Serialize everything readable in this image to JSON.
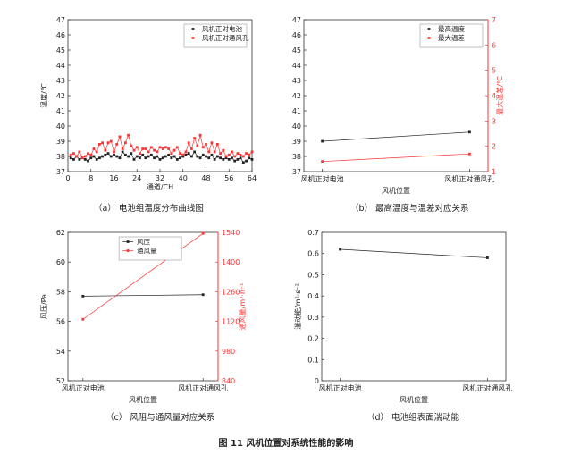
{
  "figure_caption": "图 11 风机位置对系统性能的影响",
  "chart_data": [
    {
      "type": "line",
      "caption": "（a） 电池组温度分布曲线图",
      "xlabel": "通道/CH",
      "ylabel": "温度/℃",
      "xlim": [
        0,
        64
      ],
      "ylim": [
        37,
        47
      ],
      "xticks": [
        0,
        8,
        16,
        24,
        32,
        40,
        48,
        56,
        64
      ],
      "yticks": [
        37,
        38,
        39,
        40,
        41,
        42,
        43,
        44,
        45,
        46,
        47
      ],
      "legend_position": "top-right",
      "series": [
        {
          "name": "风机正对电池",
          "color": "#222222",
          "x": [
            1,
            2,
            3,
            4,
            5,
            6,
            7,
            8,
            9,
            10,
            11,
            12,
            13,
            14,
            15,
            16,
            17,
            18,
            19,
            20,
            21,
            22,
            23,
            24,
            25,
            26,
            27,
            28,
            29,
            30,
            31,
            32,
            33,
            34,
            35,
            36,
            37,
            38,
            39,
            40,
            41,
            42,
            43,
            44,
            45,
            46,
            47,
            48,
            49,
            50,
            51,
            52,
            53,
            54,
            55,
            56,
            57,
            58,
            59,
            60,
            61,
            62,
            63,
            64
          ],
          "y": [
            37.9,
            37.8,
            38.0,
            37.8,
            37.9,
            37.8,
            37.7,
            37.9,
            38.0,
            37.8,
            37.9,
            38.0,
            38.1,
            38.2,
            38.0,
            38.1,
            38.0,
            37.9,
            38.3,
            38.1,
            38.0,
            38.2,
            37.8,
            38.0,
            37.9,
            38.1,
            37.9,
            38.0,
            38.1,
            37.9,
            38.0,
            37.8,
            37.9,
            38.0,
            38.1,
            37.9,
            38.0,
            37.8,
            37.9,
            38.0,
            38.1,
            38.2,
            38.0,
            38.3,
            38.0,
            37.9,
            38.1,
            38.0,
            37.9,
            38.1,
            37.8,
            38.0,
            37.9,
            37.8,
            37.9,
            37.8,
            37.9,
            37.7,
            37.8,
            37.9,
            37.6,
            37.7,
            37.9,
            37.8
          ]
        },
        {
          "name": "风机正对通风孔",
          "color": "#ff3333",
          "x": [
            1,
            2,
            3,
            4,
            5,
            6,
            7,
            8,
            9,
            10,
            11,
            12,
            13,
            14,
            15,
            16,
            17,
            18,
            19,
            20,
            21,
            22,
            23,
            24,
            25,
            26,
            27,
            28,
            29,
            30,
            31,
            32,
            33,
            34,
            35,
            36,
            37,
            38,
            39,
            40,
            41,
            42,
            43,
            44,
            45,
            46,
            47,
            48,
            49,
            50,
            51,
            52,
            53,
            54,
            55,
            56,
            57,
            58,
            59,
            60,
            61,
            62,
            63,
            64
          ],
          "y": [
            38.1,
            38.2,
            38.0,
            38.3,
            37.9,
            38.0,
            38.2,
            38.1,
            38.5,
            38.3,
            38.8,
            38.9,
            38.4,
            38.9,
            39.0,
            38.3,
            38.8,
            39.3,
            38.5,
            38.9,
            39.4,
            38.7,
            38.4,
            38.6,
            38.2,
            38.5,
            38.5,
            38.3,
            38.6,
            38.4,
            38.3,
            38.6,
            38.5,
            38.6,
            38.5,
            38.2,
            38.4,
            38.6,
            38.2,
            38.1,
            38.3,
            38.9,
            38.5,
            39.2,
            38.7,
            39.4,
            38.6,
            38.8,
            38.3,
            38.9,
            38.3,
            38.8,
            38.2,
            38.4,
            38.0,
            38.1,
            38.3,
            38.0,
            38.2,
            38.1,
            38.0,
            38.2,
            38.1,
            38.3
          ]
        }
      ]
    },
    {
      "type": "line",
      "caption": "（b） 最高温度与温差对应关系",
      "categories": [
        "风机正对电池",
        "风机正对通风孔"
      ],
      "xlabel": "风机位置",
      "ylabel": "最高温度/℃",
      "ylabel_right": "最大温差/℃",
      "ylim": [
        37,
        47
      ],
      "ylim_right": [
        1,
        7
      ],
      "yticks": [
        37,
        38,
        39,
        40,
        41,
        42,
        43,
        44,
        45,
        46,
        47
      ],
      "yticks_right": [
        1,
        2,
        3,
        4,
        5,
        6,
        7
      ],
      "legend_position": "top-right",
      "series": [
        {
          "name": "最高温度",
          "axis": "left",
          "color": "#222222",
          "values": [
            39.0,
            39.6
          ]
        },
        {
          "name": "最大温差",
          "axis": "right",
          "color": "#ff3333",
          "values": [
            1.4,
            1.7
          ]
        }
      ]
    },
    {
      "type": "line",
      "caption": "（c） 风阻与通风量对应关系",
      "categories": [
        "风机正对电池",
        "风机正对通风孔"
      ],
      "xlabel": "风机位置",
      "ylabel": "风压/Pa",
      "ylabel_right": "通风量/m³·h⁻¹",
      "ylim": [
        52,
        62
      ],
      "ylim_right": [
        840,
        1540
      ],
      "yticks": [
        52,
        54,
        56,
        58,
        60,
        62
      ],
      "yticks_right": [
        840,
        980,
        1120,
        1260,
        1400,
        1540
      ],
      "legend_position": "top-left",
      "series": [
        {
          "name": "风压",
          "axis": "left",
          "color": "#222222",
          "values": [
            57.7,
            57.8
          ]
        },
        {
          "name": "通风量",
          "axis": "right",
          "color": "#ff3333",
          "values": [
            1130,
            1535
          ]
        }
      ]
    },
    {
      "type": "line",
      "caption": "（d） 电池组表面湍动能",
      "categories": [
        "风机正对电池",
        "风机正对通风孔"
      ],
      "xlabel": "风机位置",
      "ylabel": "湍动能/m²·s⁻²",
      "ylim": [
        0,
        0.7
      ],
      "yticks": [
        0,
        0.1,
        0.2,
        0.3,
        0.4,
        0.5,
        0.6,
        0.7
      ],
      "series": [
        {
          "color": "#222222",
          "values": [
            0.62,
            0.58
          ]
        }
      ]
    }
  ]
}
